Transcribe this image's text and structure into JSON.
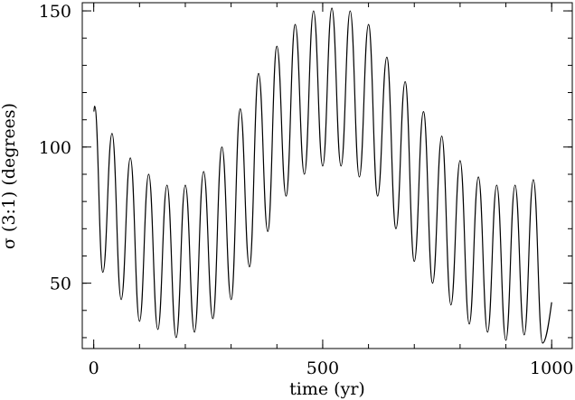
{
  "chart_data": {
    "type": "line",
    "xlabel": "time (yr)",
    "ylabel": "σ (3:1) (degrees)",
    "xlim": [
      -25,
      1045
    ],
    "ylim": [
      26,
      153
    ],
    "grid": false,
    "x_ticks": [
      {
        "value": 0,
        "label": "0"
      },
      {
        "value": 500,
        "label": "500"
      },
      {
        "value": 1000,
        "label": "1000"
      }
    ],
    "y_ticks": [
      {
        "value": 50,
        "label": "50"
      },
      {
        "value": 100,
        "label": "100"
      },
      {
        "value": 150,
        "label": "150"
      }
    ],
    "x_minor_step": 100,
    "y_minor_step": 10,
    "series": [
      {
        "color": "#000000",
        "x": [
          0,
          2,
          20,
          40,
          60,
          80,
          100,
          120,
          140,
          160,
          180,
          200,
          220,
          240,
          260,
          280,
          300,
          320,
          340,
          360,
          380,
          400,
          420,
          440,
          460,
          480,
          500,
          520,
          540,
          560,
          580,
          600,
          620,
          640,
          660,
          680,
          700,
          720,
          740,
          760,
          780,
          800,
          820,
          840,
          860,
          880,
          900,
          920,
          940,
          960,
          980,
          1000
        ],
        "y": [
          113,
          115,
          54,
          105,
          44,
          96,
          36,
          90,
          33,
          86,
          30,
          86,
          32,
          91,
          37,
          100,
          44,
          114,
          56,
          127,
          69,
          137,
          82,
          145,
          90,
          150,
          93,
          151,
          93,
          150,
          89,
          145,
          82,
          133,
          70,
          124,
          58,
          113,
          50,
          104,
          42,
          95,
          35,
          89,
          32,
          86,
          29,
          86,
          31,
          88,
          28,
          43
        ]
      }
    ]
  }
}
